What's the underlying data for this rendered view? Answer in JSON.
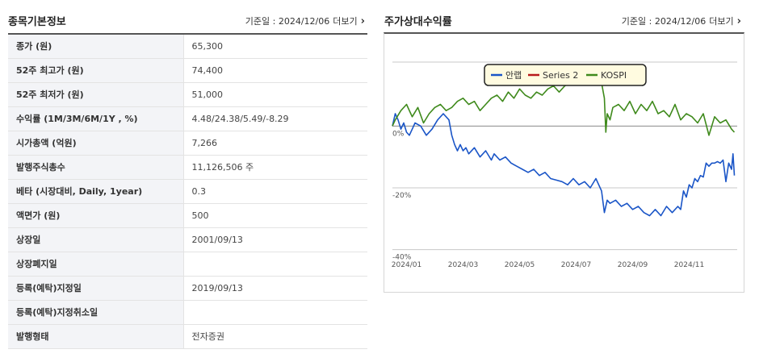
{
  "left_panel": {
    "title": "종목기본정보",
    "date_text": "기준일 : 2024/12/06",
    "more_label": "더보기",
    "rows": [
      {
        "label": "종가 (원)",
        "value": "65,300"
      },
      {
        "label": "52주 최고가 (원)",
        "value": "74,400"
      },
      {
        "label": "52주 최저가 (원)",
        "value": "51,000"
      },
      {
        "label": "수익률 (1M/3M/6M/1Y , %)",
        "value": "4.48/24.38/5.49/-8.29"
      },
      {
        "label": "시가총액 (억원)",
        "value": "7,266"
      },
      {
        "label": "발행주식총수",
        "value": "11,126,506 주"
      },
      {
        "label": "베타 (시장대비, Daily, 1year)",
        "value": "0.3"
      },
      {
        "label": "액면가 (원)",
        "value": "500"
      },
      {
        "label": "상장일",
        "value": "2001/09/13"
      },
      {
        "label": "상장폐지일",
        "value": ""
      },
      {
        "label": "등록(예탁)지정일",
        "value": "2019/09/13"
      },
      {
        "label": "등록(예탁)지정취소일",
        "value": ""
      },
      {
        "label": "발행형태",
        "value": "전자증권"
      }
    ]
  },
  "right_panel": {
    "title": "주가상대수익률",
    "date_text": "기준일 : 2024/12/06",
    "more_label": "더보기"
  },
  "icons": {
    "more": "chevron-right-icon"
  },
  "chart_data": {
    "type": "line",
    "title": "",
    "xlabel": "",
    "ylabel": "",
    "y_ticks": [
      "0%",
      "-20%",
      "-40%"
    ],
    "y_tick_values": [
      0,
      -20,
      -40
    ],
    "ylim": [
      -44,
      22
    ],
    "x_ticks": [
      "2024/01",
      "2024/03",
      "2024/05",
      "2024/07",
      "2024/09",
      "2024/11"
    ],
    "x_tick_index": [
      0,
      2,
      4,
      6,
      8,
      10
    ],
    "xlim": [
      -0.5,
      11.7
    ],
    "grid": true,
    "legend_position": "top-center",
    "series": [
      {
        "name": "안랩",
        "color": "#1a55c7",
        "x": [
          -0.5,
          -0.4,
          -0.3,
          -0.2,
          -0.1,
          0.0,
          0.1,
          0.2,
          0.3,
          0.5,
          0.7,
          0.9,
          1.1,
          1.3,
          1.5,
          1.6,
          1.7,
          1.8,
          1.9,
          2.0,
          2.1,
          2.2,
          2.4,
          2.6,
          2.8,
          3.0,
          3.1,
          3.3,
          3.5,
          3.7,
          3.9,
          4.1,
          4.3,
          4.5,
          4.7,
          4.9,
          5.1,
          5.3,
          5.5,
          5.7,
          5.9,
          6.1,
          6.3,
          6.5,
          6.7,
          6.9,
          7.0,
          7.1,
          7.2,
          7.4,
          7.6,
          7.8,
          8.0,
          8.2,
          8.4,
          8.6,
          8.8,
          9.0,
          9.2,
          9.4,
          9.6,
          9.7,
          9.8,
          9.9,
          10.0,
          10.1,
          10.2,
          10.3,
          10.4,
          10.5,
          10.6,
          10.7,
          10.8,
          10.9,
          11.0,
          11.1,
          11.2,
          11.3,
          11.4,
          11.5,
          11.55,
          11.6
        ],
        "y": [
          0,
          4,
          2,
          -1,
          1,
          -2,
          -3,
          -1,
          1,
          0,
          -3,
          -1,
          2,
          4,
          2,
          -3,
          -6,
          -8,
          -6,
          -8,
          -7,
          -9,
          -7,
          -10,
          -8,
          -11,
          -9,
          -11,
          -10,
          -12,
          -13,
          -14,
          -15,
          -14,
          -16,
          -15,
          -17,
          -17.5,
          -18,
          -19,
          -17,
          -19,
          -18,
          -20,
          -17,
          -21,
          -28,
          -24,
          -25,
          -24,
          -26,
          -25,
          -27,
          -26,
          -28,
          -29,
          -27,
          -29,
          -26,
          -28,
          -26,
          -27,
          -21,
          -23,
          -19,
          -20,
          -17,
          -18,
          -16,
          -16.5,
          -12,
          -13,
          -12,
          -12,
          -11.5,
          -12,
          -11,
          -18,
          -12,
          -14,
          -9,
          -16
        ]
      },
      {
        "name": "Series 2",
        "color": "#b8181a",
        "x": [],
        "y": []
      },
      {
        "name": "KOSPI",
        "color": "#3f8a1c",
        "x": [
          -0.5,
          -0.4,
          -0.2,
          0.0,
          0.2,
          0.4,
          0.6,
          0.8,
          1.0,
          1.2,
          1.4,
          1.6,
          1.8,
          2.0,
          2.2,
          2.4,
          2.6,
          2.8,
          3.0,
          3.2,
          3.4,
          3.6,
          3.8,
          4.0,
          4.2,
          4.4,
          4.6,
          4.8,
          5.0,
          5.2,
          5.4,
          5.6,
          5.8,
          6.0,
          6.2,
          6.4,
          6.5,
          6.6,
          6.7,
          6.8,
          6.9,
          7.0,
          7.05,
          7.1,
          7.2,
          7.3,
          7.5,
          7.7,
          7.9,
          8.1,
          8.3,
          8.5,
          8.7,
          8.9,
          9.1,
          9.3,
          9.5,
          9.7,
          9.9,
          10.1,
          10.3,
          10.5,
          10.7,
          10.9,
          11.1,
          11.3,
          11.5,
          11.6
        ],
        "y": [
          0,
          2,
          5,
          7,
          3,
          6,
          1,
          4,
          6,
          7,
          5,
          6,
          8,
          9,
          7,
          8,
          5,
          7,
          9,
          10,
          8,
          11,
          9,
          12,
          10,
          9,
          11,
          10,
          12,
          13,
          11,
          13,
          14,
          14,
          16,
          15,
          17,
          14,
          16,
          15,
          14,
          9,
          -2,
          4,
          2,
          6,
          7,
          5,
          8,
          4,
          7,
          5,
          8,
          4,
          5,
          3,
          7,
          2,
          4,
          3,
          1,
          4,
          -3,
          3,
          1,
          2,
          -1,
          -2
        ]
      }
    ]
  }
}
